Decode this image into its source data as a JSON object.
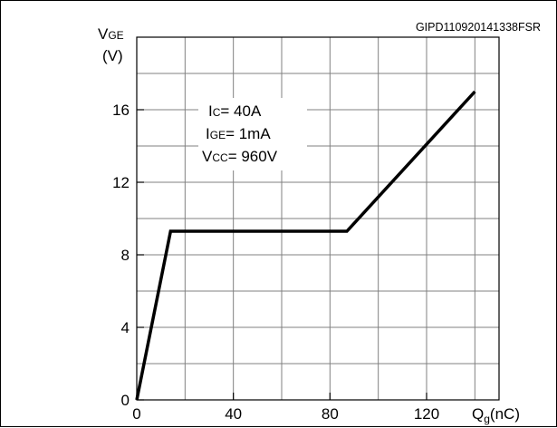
{
  "figure_id": "GIPD110920141338FSR",
  "chart_data": {
    "type": "line",
    "ylabel": {
      "main": "V",
      "sub": "GE",
      "unit": "(V)"
    },
    "xlabel": {
      "main": "Q",
      "sub": "g",
      "unit": "(nC)"
    },
    "xlim": [
      0,
      150
    ],
    "ylim": [
      0,
      20
    ],
    "x_ticks": [
      "0",
      "40",
      "80",
      "120"
    ],
    "y_ticks": [
      "0",
      "4",
      "8",
      "12",
      "16"
    ],
    "grid": true,
    "conditions": [
      {
        "main": "I",
        "sub": "C",
        "rest": "= 40A"
      },
      {
        "main": "I",
        "sub": "GE",
        "rest": "= 1mA"
      },
      {
        "main": "V",
        "sub": "CC",
        "rest": "= 960V"
      }
    ],
    "series": [
      {
        "x": [
          0,
          14,
          87,
          140
        ],
        "y": [
          0,
          9.3,
          9.3,
          17
        ]
      }
    ]
  },
  "colors": {
    "line": "#000000",
    "grid": "#808080",
    "axis": "#000000"
  }
}
